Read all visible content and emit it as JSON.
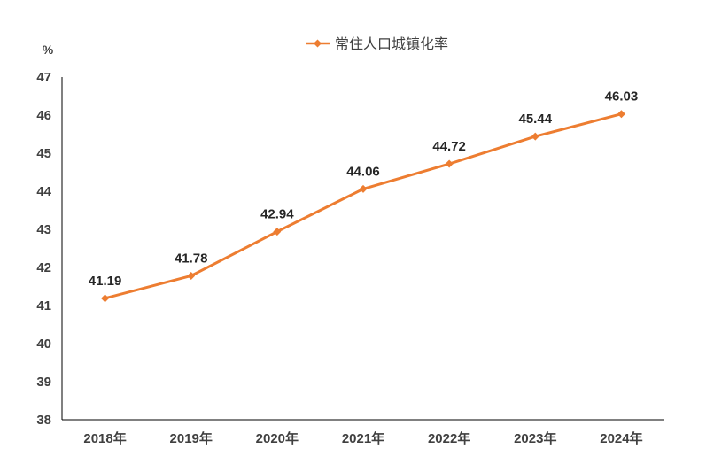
{
  "chart_data": {
    "type": "line",
    "title": "",
    "ylabel": "%",
    "xlabel": "",
    "categories": [
      "2018年",
      "2019年",
      "2020年",
      "2021年",
      "2022年",
      "2023年",
      "2024年"
    ],
    "series": [
      {
        "name": "常住人口城镇化率",
        "values": [
          41.19,
          41.78,
          42.94,
          44.06,
          44.72,
          45.44,
          46.03
        ]
      }
    ],
    "data_labels": [
      "41.19",
      "41.78",
      "42.94",
      "44.06",
      "44.72",
      "45.44",
      "46.03"
    ],
    "ylim": [
      38,
      47
    ],
    "yticks": [
      "38",
      "39",
      "40",
      "41",
      "42",
      "43",
      "44",
      "45",
      "46",
      "47"
    ],
    "grid": false,
    "legend_position": "top",
    "colors": {
      "series": "#ED7D31",
      "axis": "#000000",
      "text": "#404040"
    }
  }
}
